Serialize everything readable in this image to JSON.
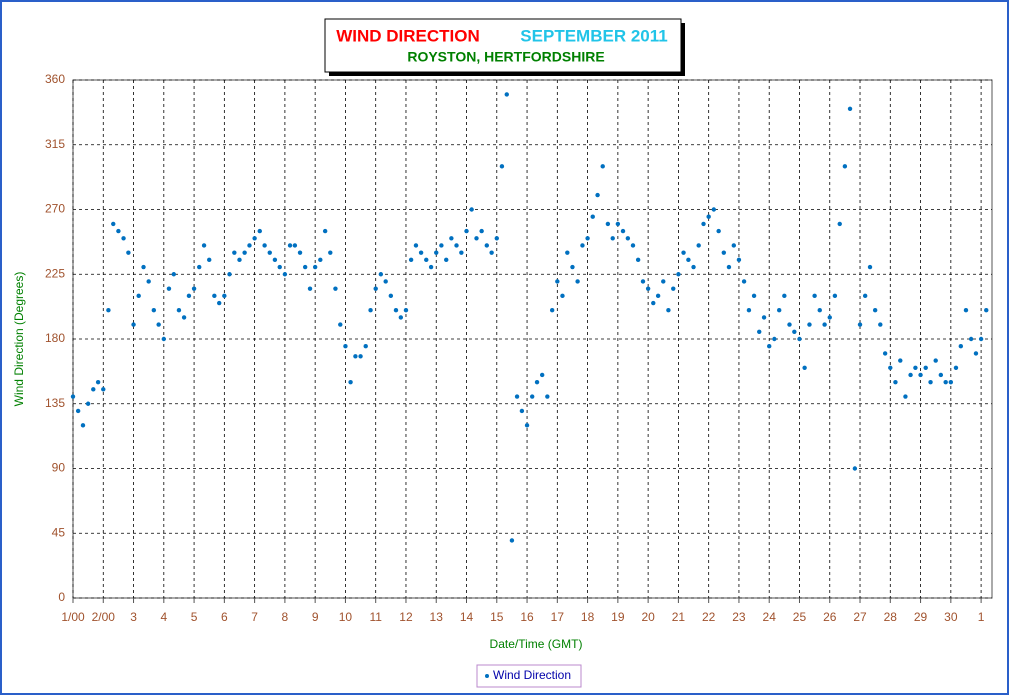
{
  "chart_data": {
    "type": "scatter",
    "title": "WIND DIRECTION",
    "subtitle": "SEPTEMBER 2011",
    "location": "ROYSTON, HERTFORDSHIRE",
    "x_label": "Date/Time (GMT)",
    "y_label": "Wind Direction (Degrees)",
    "xlim": [
      0,
      30.36
    ],
    "ylim": [
      0,
      360
    ],
    "xticks": [
      {
        "value": 0,
        "label": "1/00"
      },
      {
        "value": 1,
        "label": "2/00"
      },
      {
        "value": 2,
        "label": "3"
      },
      {
        "value": 3,
        "label": "4"
      },
      {
        "value": 4,
        "label": "5"
      },
      {
        "value": 5,
        "label": "6"
      },
      {
        "value": 6,
        "label": "7"
      },
      {
        "value": 7,
        "label": "8"
      },
      {
        "value": 8,
        "label": "9"
      },
      {
        "value": 9,
        "label": "10"
      },
      {
        "value": 10,
        "label": "11"
      },
      {
        "value": 11,
        "label": "12"
      },
      {
        "value": 12,
        "label": "13"
      },
      {
        "value": 13,
        "label": "14"
      },
      {
        "value": 14,
        "label": "15"
      },
      {
        "value": 15,
        "label": "16"
      },
      {
        "value": 16,
        "label": "17"
      },
      {
        "value": 17,
        "label": "18"
      },
      {
        "value": 18,
        "label": "19"
      },
      {
        "value": 19,
        "label": "20"
      },
      {
        "value": 20,
        "label": "21"
      },
      {
        "value": 21,
        "label": "22"
      },
      {
        "value": 22,
        "label": "23"
      },
      {
        "value": 23,
        "label": "24"
      },
      {
        "value": 24,
        "label": "25"
      },
      {
        "value": 25,
        "label": "26"
      },
      {
        "value": 26,
        "label": "27"
      },
      {
        "value": 27,
        "label": "28"
      },
      {
        "value": 28,
        "label": "29"
      },
      {
        "value": 29,
        "label": "30"
      },
      {
        "value": 30,
        "label": "1"
      }
    ],
    "yticks": [
      0,
      45,
      90,
      135,
      180,
      225,
      270,
      315,
      360
    ],
    "grid": true,
    "series": [
      {
        "name": "Wind Direction",
        "color": "#0070c0",
        "x": [
          0,
          0.17,
          0.33,
          0.5,
          0.67,
          0.83,
          1,
          1.17,
          1.33,
          1.5,
          1.67,
          1.83,
          2,
          2.17,
          2.33,
          2.5,
          2.67,
          2.83,
          3,
          3.17,
          3.33,
          3.5,
          3.67,
          3.83,
          4,
          4.17,
          4.33,
          4.5,
          4.67,
          4.83,
          5,
          5.17,
          5.33,
          5.5,
          5.67,
          5.83,
          6,
          6.17,
          6.33,
          6.5,
          6.67,
          6.83,
          7,
          7.17,
          7.33,
          7.5,
          7.67,
          7.83,
          8,
          8.17,
          8.33,
          8.5,
          8.67,
          8.83,
          9,
          9.17,
          9.33,
          9.5,
          9.67,
          9.83,
          10,
          10.17,
          10.33,
          10.5,
          10.67,
          10.83,
          11,
          11.17,
          11.33,
          11.5,
          11.67,
          11.83,
          12,
          12.17,
          12.33,
          12.5,
          12.67,
          12.83,
          13,
          13.17,
          13.33,
          13.5,
          13.67,
          13.83,
          14,
          14.17,
          14.33,
          14.5,
          14.67,
          14.83,
          15,
          15.17,
          15.33,
          15.5,
          15.67,
          15.83,
          16,
          16.17,
          16.33,
          16.5,
          16.67,
          16.83,
          17,
          17.17,
          17.33,
          17.5,
          17.67,
          17.83,
          18,
          18.17,
          18.33,
          18.5,
          18.67,
          18.83,
          19,
          19.17,
          19.33,
          19.5,
          19.67,
          19.83,
          20,
          20.17,
          20.33,
          20.5,
          20.67,
          20.83,
          21,
          21.17,
          21.33,
          21.5,
          21.67,
          21.83,
          22,
          22.17,
          22.33,
          22.5,
          22.67,
          22.83,
          23,
          23.17,
          23.33,
          23.5,
          23.67,
          23.83,
          24,
          24.17,
          24.33,
          24.5,
          24.67,
          24.83,
          25,
          25.17,
          25.33,
          25.5,
          25.67,
          25.83,
          26,
          26.17,
          26.33,
          26.5,
          26.67,
          26.83,
          27,
          27.17,
          27.33,
          27.5,
          27.67,
          27.83,
          28,
          28.17,
          28.33,
          28.5,
          28.67,
          28.83,
          29,
          29.17,
          29.33,
          29.5,
          29.67,
          29.83,
          30,
          30.17
        ],
        "values": [
          140,
          130,
          120,
          135,
          145,
          150,
          145,
          200,
          260,
          255,
          250,
          240,
          190,
          210,
          230,
          220,
          200,
          190,
          180,
          215,
          225,
          200,
          195,
          210,
          215,
          230,
          245,
          235,
          210,
          205,
          210,
          225,
          240,
          235,
          240,
          245,
          250,
          255,
          245,
          240,
          235,
          230,
          225,
          245,
          245,
          240,
          230,
          215,
          230,
          235,
          255,
          240,
          215,
          190,
          175,
          150,
          168,
          168,
          175,
          200,
          215,
          225,
          220,
          210,
          200,
          195,
          200,
          235,
          245,
          240,
          235,
          230,
          240,
          245,
          235,
          250,
          245,
          240,
          255,
          270,
          250,
          255,
          245,
          240,
          250,
          300,
          350,
          40,
          140,
          130,
          120,
          140,
          150,
          155,
          140,
          200,
          220,
          210,
          240,
          230,
          220,
          245,
          250,
          265,
          280,
          300,
          260,
          250,
          260,
          255,
          250,
          245,
          235,
          220,
          215,
          205,
          210,
          220,
          200,
          215,
          225,
          240,
          235,
          230,
          245,
          260,
          265,
          270,
          255,
          240,
          230,
          245,
          235,
          220,
          200,
          210,
          185,
          195,
          175,
          180,
          200,
          210,
          190,
          185,
          180,
          160,
          190,
          210,
          200,
          190,
          195,
          210,
          260,
          300,
          340,
          90,
          190,
          210,
          230,
          200,
          190,
          170,
          160,
          150,
          165,
          140,
          155,
          160,
          155,
          160,
          150,
          165,
          155,
          150,
          150,
          160,
          175,
          200,
          180,
          170,
          180,
          200
        ]
      }
    ]
  }
}
